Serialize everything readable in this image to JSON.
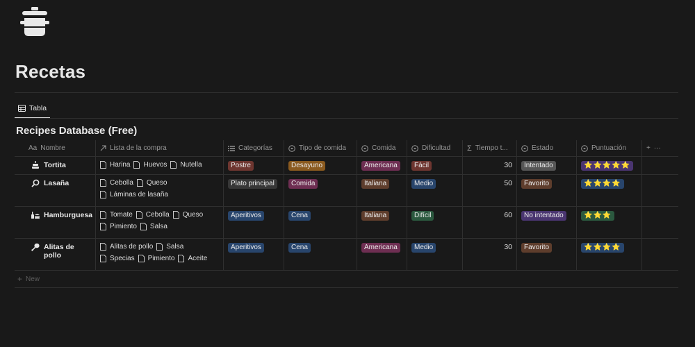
{
  "page": {
    "title": "Recetas",
    "icon": "cooking-pot-icon"
  },
  "view_tab": {
    "label": "Tabla",
    "icon": "table-icon"
  },
  "database": {
    "title": "Recipes Database (Free)"
  },
  "columns": [
    {
      "key": "name",
      "prefix": "Aa",
      "label": "Nombre",
      "icon": "title-icon"
    },
    {
      "key": "list",
      "label": "Lista de la compra",
      "icon": "relation-arrow-icon"
    },
    {
      "key": "cat",
      "label": "Categorías",
      "icon": "multi-select-icon"
    },
    {
      "key": "meal",
      "label": "Tipo de comida",
      "icon": "select-icon"
    },
    {
      "key": "cuisine",
      "label": "Comida",
      "icon": "select-icon"
    },
    {
      "key": "diff",
      "label": "Dificultad",
      "icon": "select-icon"
    },
    {
      "key": "time",
      "label": "Tiempo t...",
      "icon": "sigma-icon"
    },
    {
      "key": "state",
      "label": "Estado",
      "icon": "select-icon"
    },
    {
      "key": "score",
      "label": "Puntuación",
      "icon": "select-icon"
    }
  ],
  "header_actions": {
    "add": "+",
    "more": "···"
  },
  "colors": {
    "red": "#6e3630",
    "orange": "#8a5a1f",
    "pink": "#6e2e52",
    "brown": "#5e3d2c",
    "blue": "#28456c",
    "green": "#2b593f",
    "gray": "#555555",
    "purple": "#4a3570",
    "default": "#373737"
  },
  "rows": [
    {
      "name": "Tortita",
      "icon": "cake-icon",
      "list": [
        "Harina",
        "Huevos",
        "Nutella"
      ],
      "categories": [
        {
          "label": "Postre",
          "color": "#6e3630"
        }
      ],
      "meal": {
        "label": "Desayuno",
        "color": "#8a5a1f"
      },
      "cuisine": {
        "label": "Americana",
        "color": "#6e2e52"
      },
      "difficulty": {
        "label": "Fácil",
        "color": "#6e3630"
      },
      "time": "30",
      "state": {
        "label": "Intentado",
        "color": "#555555"
      },
      "score": {
        "label": "⭐⭐⭐⭐⭐",
        "value": 5,
        "color": "#4a3570"
      }
    },
    {
      "name": "Lasaña",
      "icon": "magnifier-icon",
      "list": [
        "Cebolla",
        "Queso",
        "Láminas de lasaña"
      ],
      "categories": [
        {
          "label": "Plato principal",
          "color": "#373737"
        }
      ],
      "meal": {
        "label": "Comida",
        "color": "#6e2e52"
      },
      "cuisine": {
        "label": "Italiana",
        "color": "#5e3d2c"
      },
      "difficulty": {
        "label": "Medio",
        "color": "#28456c"
      },
      "time": "50",
      "state": {
        "label": "Favorito",
        "color": "#5e3d2c"
      },
      "score": {
        "label": "⭐⭐⭐⭐",
        "value": 4,
        "color": "#28456c"
      }
    },
    {
      "name": "Hamburguesa",
      "icon": "burger-drink-icon",
      "list": [
        "Tomate",
        "Cebolla",
        "Queso",
        "Pimiento",
        "Salsa"
      ],
      "categories": [
        {
          "label": "Aperitivos",
          "color": "#28456c"
        }
      ],
      "meal": {
        "label": "Cena",
        "color": "#28456c"
      },
      "cuisine": {
        "label": "Italiana",
        "color": "#5e3d2c"
      },
      "difficulty": {
        "label": "Difícil",
        "color": "#2b593f"
      },
      "time": "60",
      "state": {
        "label": "No intentado",
        "color": "#4a3570"
      },
      "score": {
        "label": "⭐⭐⭐",
        "value": 3,
        "color": "#2b593f"
      }
    },
    {
      "name": "Alitas de pollo",
      "icon": "drumstick-icon",
      "list": [
        "Alitas de pollo",
        "Salsa",
        "Specias",
        "Pimiento",
        "Aceite"
      ],
      "categories": [
        {
          "label": "Aperitivos",
          "color": "#28456c"
        }
      ],
      "meal": {
        "label": "Cena",
        "color": "#28456c"
      },
      "cuisine": {
        "label": "Americana",
        "color": "#6e2e52"
      },
      "difficulty": {
        "label": "Medio",
        "color": "#28456c"
      },
      "time": "30",
      "state": {
        "label": "Favorito",
        "color": "#5e3d2c"
      },
      "score": {
        "label": "⭐⭐⭐⭐",
        "value": 4,
        "color": "#28456c"
      }
    }
  ],
  "new_row": {
    "label": "New",
    "icon": "plus-icon"
  }
}
